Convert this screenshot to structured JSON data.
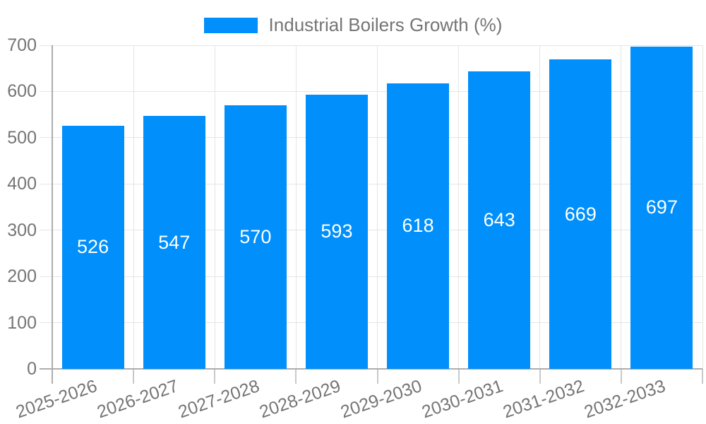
{
  "chart_data": {
    "type": "bar",
    "title": "",
    "series_name": "Industrial Boilers Growth (%)",
    "legend_position": "top",
    "categories": [
      "2025-2026",
      "2026-2027",
      "2027-2028",
      "2028-2029",
      "2029-2030",
      "2030-2031",
      "2031-2032",
      "2032-2033"
    ],
    "values": [
      526,
      547,
      570,
      593,
      618,
      643,
      669,
      697
    ],
    "xlabel": "",
    "ylabel": "",
    "ylim": [
      0,
      700
    ],
    "yticks": [
      0,
      100,
      200,
      300,
      400,
      500,
      600,
      700
    ],
    "grid": true,
    "x_label_rotation_deg": -19,
    "colors": {
      "bar": "#008FFB",
      "value_label": "#FFFFFF",
      "axis_text": "#757575",
      "legend_text": "#757575",
      "gridline": "#E5E5E5",
      "axis_line": "#ADADAD",
      "tick": "#C9C9C9",
      "background": "#FFFFFF"
    }
  }
}
